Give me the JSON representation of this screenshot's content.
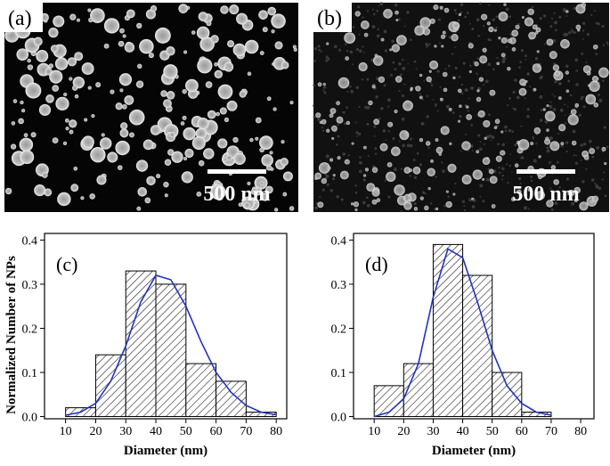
{
  "images": [
    {
      "label": "(a)",
      "scale_bar": "500 nm"
    },
    {
      "label": "(b)",
      "scale_bar": "500 nm"
    }
  ],
  "chart_data": [
    {
      "type": "histogram",
      "label": "(c)",
      "xlabel": "Diameter (nm)",
      "ylabel": "Normalized Number of NPs",
      "bins": [
        10,
        20,
        30,
        40,
        50,
        60,
        70,
        80
      ],
      "counts": [
        0.02,
        0.14,
        0.33,
        0.3,
        0.12,
        0.08,
        0.01
      ],
      "xlim": [
        3,
        83.5
      ],
      "ylim": [
        -0.005,
        0.415
      ],
      "xticks": [
        10,
        20,
        30,
        40,
        50,
        60,
        70,
        80
      ],
      "yticks": [
        {
          "value": 0,
          "label": "0.0"
        },
        0.1,
        0.2,
        0.3,
        0.4
      ],
      "fit": {
        "color": "#2233bb",
        "x": [
          10,
          15,
          20,
          25,
          30,
          35,
          40,
          45,
          50,
          55,
          60,
          65,
          70,
          75,
          80
        ],
        "values": [
          0.003,
          0.01,
          0.03,
          0.08,
          0.16,
          0.26,
          0.32,
          0.31,
          0.25,
          0.17,
          0.1,
          0.055,
          0.025,
          0.01,
          0.004
        ]
      }
    },
    {
      "type": "histogram",
      "label": "(d)",
      "xlabel": "Diameter (nm)",
      "bins": [
        10,
        20,
        30,
        40,
        50,
        60,
        70
      ],
      "counts": [
        0.07,
        0.12,
        0.39,
        0.32,
        0.1,
        0.01
      ],
      "xlim": [
        3,
        84.5
      ],
      "ylim": [
        -0.005,
        0.415
      ],
      "xticks": [
        10,
        20,
        30,
        40,
        50,
        60,
        70,
        80
      ],
      "yticks": [
        {
          "value": 0,
          "label": "0.0"
        },
        0.1,
        0.2,
        0.3,
        0.4
      ],
      "fit": {
        "color": "#2233bb",
        "x": [
          10,
          15,
          20,
          25,
          30,
          35,
          40,
          45,
          50,
          55,
          60,
          65,
          70
        ],
        "values": [
          0.0,
          0.01,
          0.04,
          0.12,
          0.27,
          0.38,
          0.36,
          0.26,
          0.15,
          0.07,
          0.03,
          0.01,
          0.003
        ]
      }
    }
  ]
}
